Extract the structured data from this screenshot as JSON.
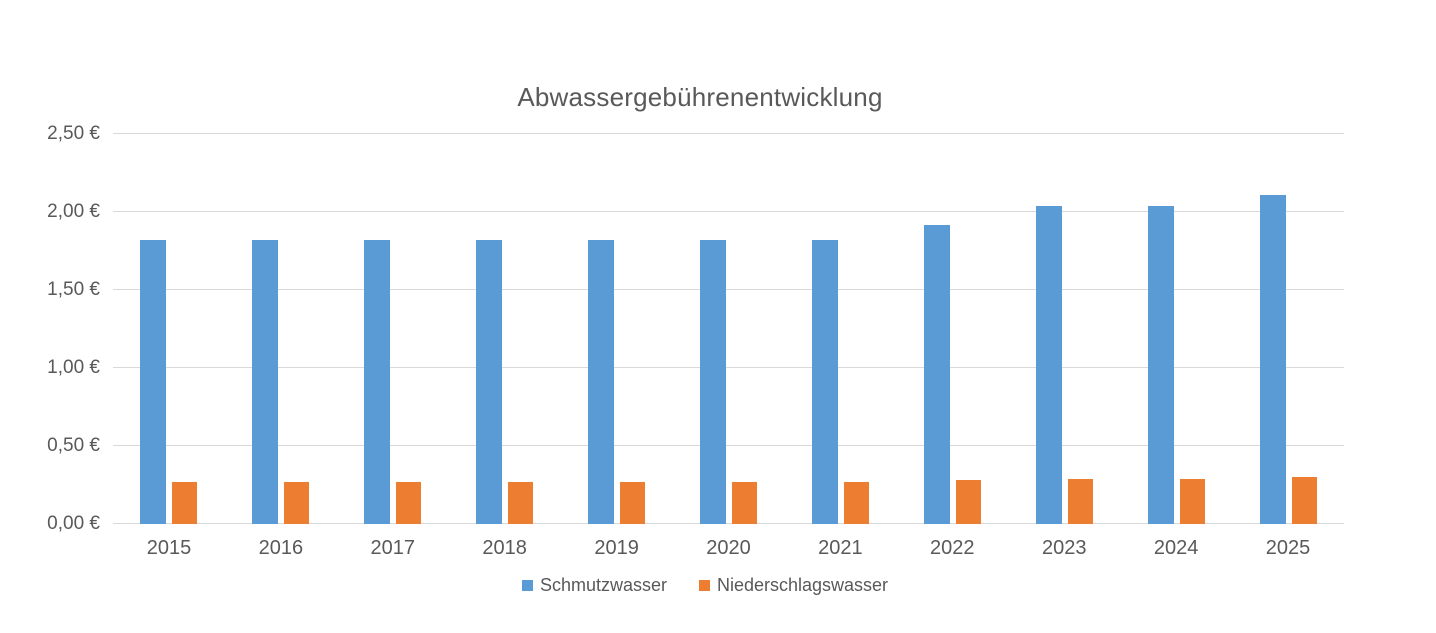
{
  "chart_data": {
    "type": "bar",
    "title": "Abwassergebührenentwicklung",
    "categories": [
      "2015",
      "2016",
      "2017",
      "2018",
      "2019",
      "2020",
      "2021",
      "2022",
      "2023",
      "2024",
      "2025"
    ],
    "series": [
      {
        "name": "Schmutzwasser",
        "color": "#5B9BD5",
        "values": [
          1.82,
          1.82,
          1.82,
          1.82,
          1.82,
          1.82,
          1.82,
          1.92,
          2.04,
          2.04,
          2.11
        ]
      },
      {
        "name": "Niederschlagswasser",
        "color": "#ED7D31",
        "values": [
          0.27,
          0.27,
          0.27,
          0.27,
          0.27,
          0.27,
          0.27,
          0.28,
          0.29,
          0.29,
          0.3
        ]
      }
    ],
    "xlabel": "",
    "ylabel": "",
    "ylim": [
      0,
      2.5
    ],
    "y_ticks": [
      {
        "value": 0.0,
        "label": "0,00 €"
      },
      {
        "value": 0.5,
        "label": "0,50 €"
      },
      {
        "value": 1.0,
        "label": "1,00 €"
      },
      {
        "value": 1.5,
        "label": "1,50 €"
      },
      {
        "value": 2.0,
        "label": "2,00 €"
      },
      {
        "value": 2.5,
        "label": "2,50 €"
      }
    ],
    "grid": true,
    "legend_position": "bottom",
    "colors": {
      "text": "#595959",
      "gridline": "#D9D9D9",
      "background": "#FFFFFF"
    }
  }
}
